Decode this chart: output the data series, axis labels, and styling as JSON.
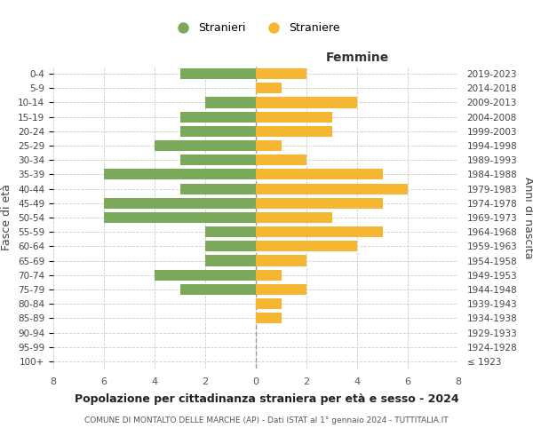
{
  "age_groups": [
    "100+",
    "95-99",
    "90-94",
    "85-89",
    "80-84",
    "75-79",
    "70-74",
    "65-69",
    "60-64",
    "55-59",
    "50-54",
    "45-49",
    "40-44",
    "35-39",
    "30-34",
    "25-29",
    "20-24",
    "15-19",
    "10-14",
    "5-9",
    "0-4"
  ],
  "birth_years": [
    "≤ 1923",
    "1924-1928",
    "1929-1933",
    "1934-1938",
    "1939-1943",
    "1944-1948",
    "1949-1953",
    "1954-1958",
    "1959-1963",
    "1964-1968",
    "1969-1973",
    "1974-1978",
    "1979-1983",
    "1984-1988",
    "1989-1993",
    "1994-1998",
    "1999-2003",
    "2004-2008",
    "2009-2013",
    "2014-2018",
    "2019-2023"
  ],
  "males": [
    0,
    0,
    0,
    0,
    0,
    3,
    4,
    2,
    2,
    2,
    6,
    6,
    3,
    6,
    3,
    4,
    3,
    3,
    2,
    0,
    3
  ],
  "females": [
    0,
    0,
    0,
    1,
    1,
    2,
    1,
    2,
    4,
    5,
    3,
    5,
    6,
    5,
    2,
    1,
    3,
    3,
    4,
    1,
    2
  ],
  "male_color": "#7aaa59",
  "female_color": "#f5b731",
  "background_color": "#ffffff",
  "grid_color": "#cccccc",
  "center_line_color": "#999999",
  "title": "Popolazione per cittadinanza straniera per età e sesso - 2024",
  "subtitle": "COMUNE DI MONTALTO DELLE MARCHE (AP) - Dati ISTAT al 1° gennaio 2024 - TUTTITALIA.IT",
  "xlabel_right": "Femmine",
  "ylabel_left": "Fasce di età",
  "ylabel_right": "Anni di nascita",
  "legend_male": "Stranieri",
  "legend_female": "Straniere",
  "xlim": 8,
  "bar_height": 0.75
}
